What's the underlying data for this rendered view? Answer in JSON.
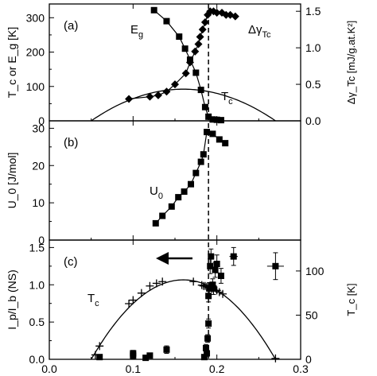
{
  "chart_data": [
    {
      "type": "scatter",
      "panel_label": "(a)",
      "ylabel": "T_c or E_g [K]",
      "y2label": "Δγ_Tc  [mJ/g.at.K²]",
      "xlim": [
        0.0,
        0.3
      ],
      "ylim": [
        0,
        340
      ],
      "y2lim": [
        0,
        1.6
      ],
      "yticks": [
        "0",
        "100",
        "200",
        "300"
      ],
      "y2ticks": [
        "0.0",
        "0.5",
        "1.0",
        "1.5"
      ],
      "series": [
        {
          "name": "E_g",
          "axis": "left",
          "marker": "square",
          "line": true,
          "x": [
            0.125,
            0.14,
            0.155,
            0.162,
            0.168,
            0.175,
            0.181,
            0.186,
            0.19,
            0.195,
            0.2,
            0.205
          ],
          "y": [
            322,
            290,
            245,
            210,
            178,
            140,
            90,
            40,
            12,
            4,
            3,
            2
          ]
        },
        {
          "name": "Δγ_Tc",
          "axis": "right",
          "marker": "diamond",
          "line": true,
          "x": [
            0.095,
            0.12,
            0.13,
            0.14,
            0.15,
            0.163,
            0.168,
            0.174,
            0.178,
            0.18,
            0.183,
            0.186,
            0.189,
            0.192,
            0.196,
            0.2,
            0.206,
            0.211,
            0.216,
            0.222
          ],
          "y": [
            0.3,
            0.33,
            0.35,
            0.4,
            0.5,
            0.65,
            0.8,
            0.95,
            1.05,
            1.15,
            1.25,
            1.35,
            1.45,
            1.5,
            1.5,
            1.48,
            1.48,
            1.45,
            1.45,
            1.43
          ]
        },
        {
          "name": "T_c",
          "axis": "left",
          "marker": "none",
          "line": true,
          "curve": "dome",
          "x0": 0.05,
          "x1": 0.27,
          "peak_x": 0.16,
          "peak_y": 92
        }
      ],
      "labels": {
        "eg": "E",
        "eg_sub": "g",
        "dg": "Δγ",
        "dg_sub": "Tc",
        "tc": "T",
        "tc_sub": "c"
      }
    },
    {
      "type": "scatter",
      "panel_label": "(b)",
      "ylabel": "U_0 [J/mol]",
      "xlim": [
        0.0,
        0.3
      ],
      "ylim": [
        0,
        32
      ],
      "yticks": [
        "0",
        "10",
        "20",
        "30"
      ],
      "series": [
        {
          "name": "U_0",
          "marker": "square",
          "line": true,
          "x": [
            0.127,
            0.135,
            0.146,
            0.154,
            0.161,
            0.169,
            0.175,
            0.181,
            0.184,
            0.188,
            0.195,
            0.203,
            0.21
          ],
          "y": [
            4.5,
            6.5,
            9.0,
            11.5,
            13.0,
            15.0,
            18.0,
            21.0,
            23.0,
            29.0,
            28.5,
            27.0,
            26.0
          ]
        }
      ],
      "labels": {
        "u0": "U",
        "u0_sub": "0"
      }
    },
    {
      "type": "scatter",
      "panel_label": "(c)",
      "ylabel": "I_p/I_b (NS)",
      "y2label": "T_c [K]",
      "xlabel": "",
      "xlim": [
        0.0,
        0.3
      ],
      "ylim": [
        0,
        1.6
      ],
      "y2lim": [
        0,
        135
      ],
      "xticks": [
        "0.0",
        "0.1",
        "0.2",
        "0.3"
      ],
      "yticks": [
        "0.0",
        "0.5",
        "1.0",
        "1.5"
      ],
      "y2ticks": [
        "0",
        "50",
        "100"
      ],
      "series": [
        {
          "name": "I_p/I_b",
          "axis": "left",
          "marker": "square",
          "x": [
            0.06,
            0.1,
            0.1,
            0.115,
            0.12,
            0.14,
            0.185,
            0.187,
            0.188,
            0.189,
            0.19,
            0.19,
            0.191,
            0.192,
            0.193,
            0.195,
            0.196,
            0.198,
            0.2,
            0.205,
            0.22,
            0.27
          ],
          "y": [
            0.03,
            0.08,
            0.05,
            0.02,
            0.05,
            0.13,
            0.03,
            0.15,
            0.08,
            0.28,
            0.48,
            0.85,
            0.95,
            1.25,
            1.38,
            1.0,
            0.95,
            1.2,
            1.28,
            1.12,
            1.38,
            1.25
          ],
          "xerr": [
            0,
            0,
            0,
            0,
            0,
            0,
            0,
            0,
            0,
            0,
            0,
            0,
            0,
            0,
            0,
            0,
            0,
            0,
            0,
            0,
            0.005,
            0.01
          ],
          "yerr": [
            0.02,
            0.04,
            0.04,
            0.02,
            0.03,
            0.05,
            0.03,
            0.05,
            0.04,
            0.05,
            0.06,
            0.08,
            0.08,
            0.1,
            0.1,
            0.08,
            0.08,
            0.1,
            0.12,
            0.1,
            0.12,
            0.18
          ]
        },
        {
          "name": "T_c",
          "axis": "right",
          "marker": "plus",
          "x": [
            0.055,
            0.06,
            0.095,
            0.1,
            0.11,
            0.12,
            0.128,
            0.135,
            0.172,
            0.182,
            0.184,
            0.186,
            0.188,
            0.19,
            0.192,
            0.194,
            0.196,
            0.2,
            0.203,
            0.207,
            0.27
          ],
          "y": [
            5,
            15,
            63,
            67,
            75,
            83,
            86,
            88,
            88,
            84,
            83,
            83,
            82,
            81,
            81,
            80,
            79,
            78,
            76,
            74,
            1
          ]
        },
        {
          "name": "T_c fit",
          "axis": "right",
          "marker": "none",
          "line": true,
          "curve": "dome",
          "x0": 0.05,
          "x1": 0.27,
          "peak_x": 0.16,
          "peak_y": 90
        }
      ],
      "annotations": [
        "arrow pointing left toward left axis"
      ],
      "labels": {
        "tc": "T",
        "tc_sub": "c"
      }
    }
  ],
  "shared": {
    "vline_x": 0.19,
    "vline_style": "dashed"
  }
}
